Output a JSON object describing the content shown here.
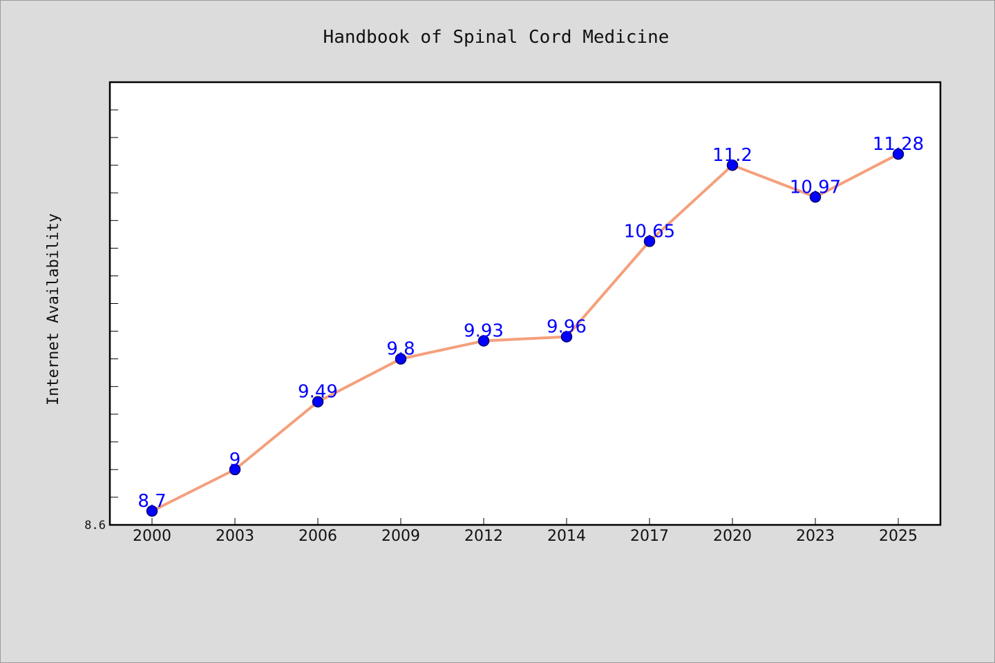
{
  "chart_data": {
    "type": "line",
    "title": "Handbook of Spinal Cord Medicine",
    "xlabel": "",
    "ylabel": "Internet Availability",
    "categories": [
      "2000",
      "2003",
      "2006",
      "2009",
      "2012",
      "2014",
      "2017",
      "2020",
      "2023",
      "2025"
    ],
    "series": [
      {
        "values": [
          8.7,
          9,
          9.49,
          9.8,
          9.93,
          9.96,
          10.65,
          11.2,
          10.97,
          11.28
        ],
        "data_labels": [
          "8.7",
          "9",
          "9.49",
          "9.8",
          "9.93",
          "9.96",
          "10.65",
          "11.2",
          "10.97",
          "11.28"
        ]
      }
    ],
    "ylim": [
      8.6,
      11.8
    ],
    "y_tick_labels": [
      "8.6"
    ],
    "grid": false,
    "legend": "none",
    "colors": {
      "line": "#f4a07c",
      "marker": "#0000ff",
      "marker_edge": "#000066",
      "data_label": "#0000ff",
      "plot_background": "#ffffff",
      "page_background": "#dcdcdc"
    }
  }
}
